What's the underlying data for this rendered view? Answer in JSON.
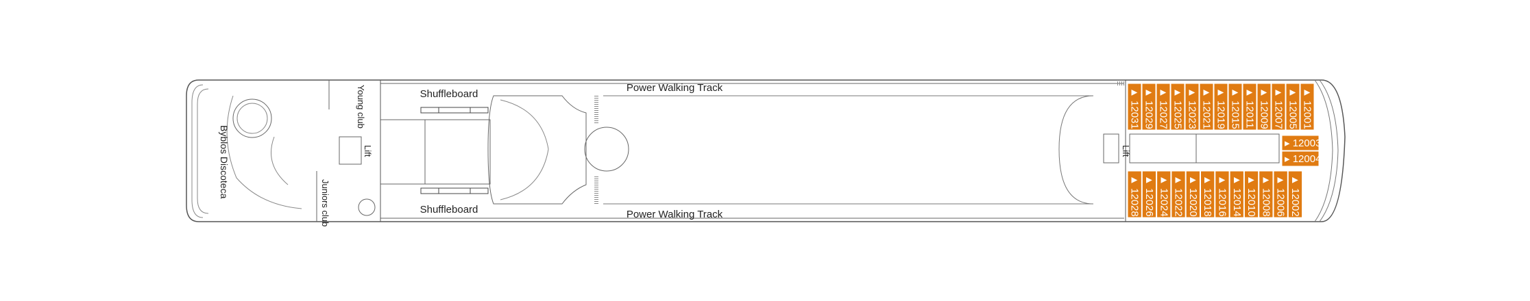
{
  "deck": {
    "labels": {
      "power_walking_track_top": "Power Walking Track",
      "power_walking_track_bottom": "Power Walking Track",
      "shuffleboard_top": "Shuffleboard",
      "shuffleboard_bottom": "Shuffleboard",
      "young_club": "Young club",
      "juniors_club": "Juniors club",
      "byblos_discoteca": "Byblos Discoteca",
      "lift_aft": "Lift",
      "lift_fwd": "Lift"
    },
    "cabin_color": "#e07b12",
    "cabins_top": [
      "12031",
      "12029",
      "12027",
      "12025",
      "12023",
      "12021",
      "12019",
      "12015",
      "12011",
      "12009",
      "12007",
      "12005",
      "12001"
    ],
    "cabins_bottom": [
      "12028",
      "12026",
      "12024",
      "12022",
      "12020",
      "12018",
      "12016",
      "12014",
      "12010",
      "12008",
      "12006",
      "12002"
    ],
    "cabins_center": [
      "12003",
      "12004"
    ]
  }
}
